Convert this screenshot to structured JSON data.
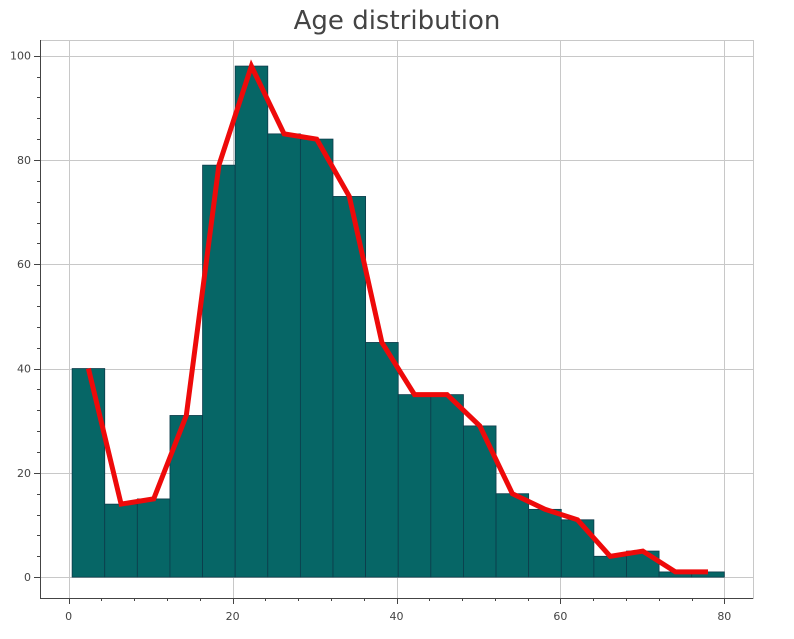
{
  "chart_data": {
    "type": "bar",
    "title": "Age distribution",
    "xlabel": "",
    "ylabel": "",
    "xlim": [
      -3.5,
      83.5
    ],
    "ylim": [
      -4,
      103
    ],
    "xticks": [
      0,
      20,
      40,
      60,
      80
    ],
    "yticks": [
      0,
      20,
      40,
      60,
      80,
      100
    ],
    "grid": true,
    "legend": "none",
    "bin_edges": [
      0.42,
      4.399,
      8.378,
      12.357,
      16.336,
      20.315,
      24.294,
      28.273,
      32.252,
      36.231,
      40.21,
      44.189,
      48.168,
      52.147,
      56.126,
      60.105,
      64.084,
      68.063,
      72.042,
      76.021,
      80.0
    ],
    "values": [
      40,
      14,
      15,
      31,
      79,
      98,
      85,
      84,
      73,
      45,
      35,
      35,
      29,
      16,
      13,
      11,
      4,
      5,
      1,
      1
    ],
    "line": {
      "x": [
        2.41,
        6.39,
        10.37,
        14.35,
        18.33,
        22.3,
        26.28,
        30.26,
        34.24,
        38.22,
        42.2,
        46.18,
        50.16,
        54.14,
        58.12,
        62.09,
        66.07,
        70.05,
        74.03,
        78.01
      ],
      "y": [
        40,
        14,
        15,
        31,
        79,
        98,
        85,
        84,
        73,
        45,
        35,
        35,
        29,
        16,
        13,
        11,
        4,
        5,
        1,
        1
      ]
    },
    "colors": {
      "bar_fill": "#066666",
      "bar_stroke": "#0d3b4a",
      "line": "#ee0a0a",
      "grid": "#c8c8c8",
      "axis": "#444444"
    }
  }
}
